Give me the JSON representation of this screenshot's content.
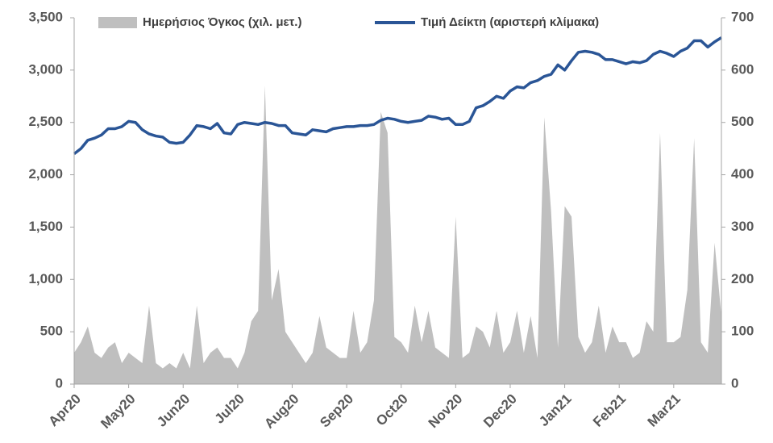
{
  "chart_data": {
    "type": "line",
    "categories": [
      "Apr20",
      null,
      null,
      null,
      null,
      null,
      null,
      null,
      "May20",
      null,
      null,
      null,
      null,
      null,
      null,
      null,
      "Jun20",
      null,
      null,
      null,
      null,
      null,
      null,
      null,
      "Jul20",
      null,
      null,
      null,
      null,
      null,
      null,
      null,
      "Aug20",
      null,
      null,
      null,
      null,
      null,
      null,
      null,
      "Sep20",
      null,
      null,
      null,
      null,
      null,
      null,
      null,
      "Oct20",
      null,
      null,
      null,
      null,
      null,
      null,
      null,
      "Nov20",
      null,
      null,
      null,
      null,
      null,
      null,
      null,
      "Dec20",
      null,
      null,
      null,
      null,
      null,
      null,
      null,
      "Jan21",
      null,
      null,
      null,
      null,
      null,
      null,
      null,
      "Feb21",
      null,
      null,
      null,
      null,
      null,
      null,
      null,
      "Mar21",
      null,
      null,
      null,
      null,
      null,
      null,
      null
    ],
    "series": [
      {
        "name": "Ημερήσιος Όγκος (χιλ. μετ.)",
        "type": "area",
        "axis": "y2",
        "color": "#bfbfbf",
        "values": [
          60,
          80,
          110,
          60,
          50,
          70,
          80,
          40,
          60,
          50,
          40,
          150,
          40,
          30,
          40,
          30,
          60,
          30,
          150,
          40,
          60,
          70,
          50,
          50,
          30,
          60,
          120,
          140,
          570,
          160,
          220,
          100,
          80,
          60,
          40,
          60,
          130,
          70,
          60,
          50,
          50,
          140,
          60,
          80,
          160,
          520,
          480,
          90,
          80,
          60,
          150,
          80,
          140,
          70,
          60,
          50,
          320,
          50,
          60,
          110,
          100,
          70,
          140,
          60,
          80,
          140,
          60,
          130,
          50,
          510,
          330,
          70,
          340,
          320,
          90,
          60,
          80,
          150,
          60,
          110,
          80,
          80,
          50,
          60,
          120,
          100,
          480,
          80,
          80,
          90,
          180,
          470,
          80,
          60,
          270,
          130
        ]
      },
      {
        "name": "Τιμή Δείκτη (αριστερή κλίμακα)",
        "type": "line",
        "color": "#2a5596",
        "values": [
          2200,
          2250,
          2330,
          2350,
          2380,
          2440,
          2440,
          2460,
          2510,
          2500,
          2430,
          2390,
          2370,
          2360,
          2310,
          2300,
          2310,
          2380,
          2470,
          2460,
          2440,
          2490,
          2400,
          2390,
          2480,
          2500,
          2490,
          2480,
          2500,
          2490,
          2470,
          2470,
          2400,
          2390,
          2380,
          2430,
          2420,
          2410,
          2440,
          2450,
          2460,
          2460,
          2470,
          2470,
          2480,
          2520,
          2540,
          2530,
          2510,
          2500,
          2510,
          2520,
          2560,
          2550,
          2530,
          2540,
          2480,
          2480,
          2510,
          2640,
          2660,
          2700,
          2750,
          2730,
          2800,
          2840,
          2830,
          2880,
          2900,
          2940,
          2960,
          3050,
          3000,
          3090,
          3170,
          3180,
          3170,
          3150,
          3100,
          3100,
          3080,
          3060,
          3080,
          3070,
          3090,
          3150,
          3180,
          3160,
          3130,
          3180,
          3210,
          3280,
          3280,
          3220,
          3270,
          3310
        ]
      }
    ],
    "ylim": [
      0,
      3500
    ],
    "yticks": [
      0,
      500,
      {
        "value": 1000,
        "label": "1,000"
      },
      {
        "value": 1500,
        "label": "1,500"
      },
      {
        "value": 2000,
        "label": "2,000"
      },
      {
        "value": 2500,
        "label": "2,500"
      },
      {
        "value": 3000,
        "label": "3,000"
      },
      {
        "value": 3500,
        "label": "3,500"
      }
    ],
    "y2lim": [
      0,
      700
    ],
    "y2ticks": [
      0,
      100,
      200,
      300,
      400,
      500,
      600,
      700
    ],
    "legend": "top"
  }
}
